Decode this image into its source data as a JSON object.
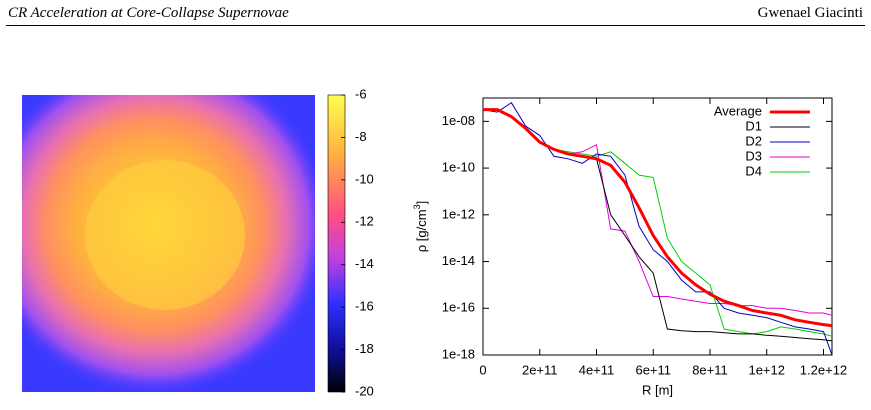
{
  "header": {
    "title": "CR Acceleration at Core-Collapse Supernovae",
    "author": "Gwenael Giacinti"
  },
  "chart_data": [
    {
      "type": "colorbar",
      "ylim": [
        -20,
        -6
      ],
      "yticks": [
        -6,
        -8,
        -10,
        -12,
        -14,
        -16,
        -18,
        -20
      ]
    },
    {
      "type": "line",
      "xlabel": "R [m]",
      "ylabel": {
        "text": "ρ [g/cm",
        "sup": "3",
        "end": "]"
      },
      "log_y": true,
      "legend": "top-right",
      "xlim": [
        0,
        1230000000000.0
      ],
      "ylim": [
        1e-18,
        1e-07
      ],
      "xticks": [
        0,
        {
          "value": 200000000000.0,
          "label": "2e+11"
        },
        {
          "value": 400000000000.0,
          "label": "4e+11"
        },
        {
          "value": 600000000000.0,
          "label": "6e+11"
        },
        {
          "value": 800000000000.0,
          "label": "8e+11"
        },
        {
          "value": 1000000000000.0,
          "label": "1e+12"
        },
        {
          "value": 1200000000000.0,
          "label": "1.2e+12"
        }
      ],
      "yticks": [
        {
          "value": 1e-18,
          "label": "1e-18"
        },
        {
          "value": 1e-16,
          "label": "1e-16"
        },
        {
          "value": 1e-14,
          "label": "1e-14"
        },
        {
          "value": 1e-12,
          "label": "1e-12"
        },
        {
          "value": 1e-10,
          "label": "1e-10"
        },
        {
          "value": 1e-08,
          "label": "1e-08"
        }
      ],
      "x": [
        0,
        50000000000.0,
        100000000000.0,
        150000000000.0,
        200000000000.0,
        250000000000.0,
        300000000000.0,
        350000000000.0,
        400000000000.0,
        450000000000.0,
        500000000000.0,
        550000000000.0,
        600000000000.0,
        650000000000.0,
        700000000000.0,
        750000000000.0,
        800000000000.0,
        850000000000.0,
        900000000000.0,
        950000000000.0,
        1000000000000.0,
        1050000000000.0,
        1100000000000.0,
        1150000000000.0,
        1200000000000.0,
        1230000000000.0
      ],
      "series": [
        {
          "name": "Average",
          "color": "#ff0000",
          "values": [
            3.2e-08,
            3.2e-08,
            1.6e-08,
            5e-09,
            1.3e-09,
            6.3e-10,
            4e-10,
            3.2e-10,
            2.5e-10,
            1.3e-10,
            2.5e-11,
            2e-12,
            1.3e-13,
            1.6e-14,
            3.2e-15,
            1e-15,
            4e-16,
            2e-16,
            1.3e-16,
            8e-17,
            6.3e-17,
            5e-17,
            3.2e-17,
            2.5e-17,
            2e-17,
            1.8e-17
          ]
        },
        {
          "name": "D1",
          "color": "#000000",
          "values": [
            3.2e-08,
            3.2e-08,
            1.6e-08,
            5e-09,
            1.3e-09,
            6.3e-10,
            4e-10,
            3.2e-10,
            2.5e-10,
            1e-12,
            1.3e-13,
            1.6e-14,
            3.2e-15,
            1.3e-17,
            1.1e-17,
            1e-17,
            1e-17,
            9e-18,
            8e-18,
            8e-18,
            7e-18,
            6.3e-18,
            5.6e-18,
            5e-18,
            4.5e-18,
            4e-18
          ]
        },
        {
          "name": "D2",
          "color": "#0000c0",
          "values": [
            3.2e-08,
            2.5e-08,
            6.3e-08,
            6.3e-09,
            2.5e-09,
            3.2e-10,
            2.5e-10,
            1.6e-10,
            4e-10,
            3.2e-10,
            5e-11,
            3.2e-13,
            3.2e-14,
            1e-14,
            1.6e-15,
            5e-16,
            5e-16,
            1e-16,
            6.3e-17,
            5e-17,
            4e-17,
            2.5e-17,
            1.6e-17,
            1.3e-17,
            1e-17,
            1e-18
          ]
        },
        {
          "name": "D3",
          "color": "#e000e0",
          "values": [
            3.2e-08,
            3.2e-08,
            1.6e-08,
            5e-09,
            1.3e-09,
            6.3e-10,
            4e-10,
            5e-10,
            1e-09,
            2.5e-13,
            2e-13,
            1e-14,
            3.2e-16,
            3.2e-16,
            2.5e-16,
            2e-16,
            1.6e-16,
            1.6e-16,
            1.3e-16,
            1.3e-16,
            1e-16,
            1e-16,
            8e-17,
            6.3e-17,
            6.3e-17,
            5e-17
          ]
        },
        {
          "name": "D4",
          "color": "#00d000",
          "values": [
            3.2e-08,
            3.2e-08,
            1.6e-08,
            5e-09,
            1.3e-09,
            6.3e-10,
            5e-10,
            4e-10,
            3.2e-10,
            5e-10,
            1.6e-10,
            5e-11,
            4e-11,
            1e-13,
            1e-14,
            3.2e-15,
            1e-15,
            1.3e-17,
            1e-17,
            8e-18,
            1e-17,
            1.6e-17,
            1.3e-17,
            1e-17,
            8e-18,
            6.3e-18
          ]
        }
      ]
    }
  ]
}
